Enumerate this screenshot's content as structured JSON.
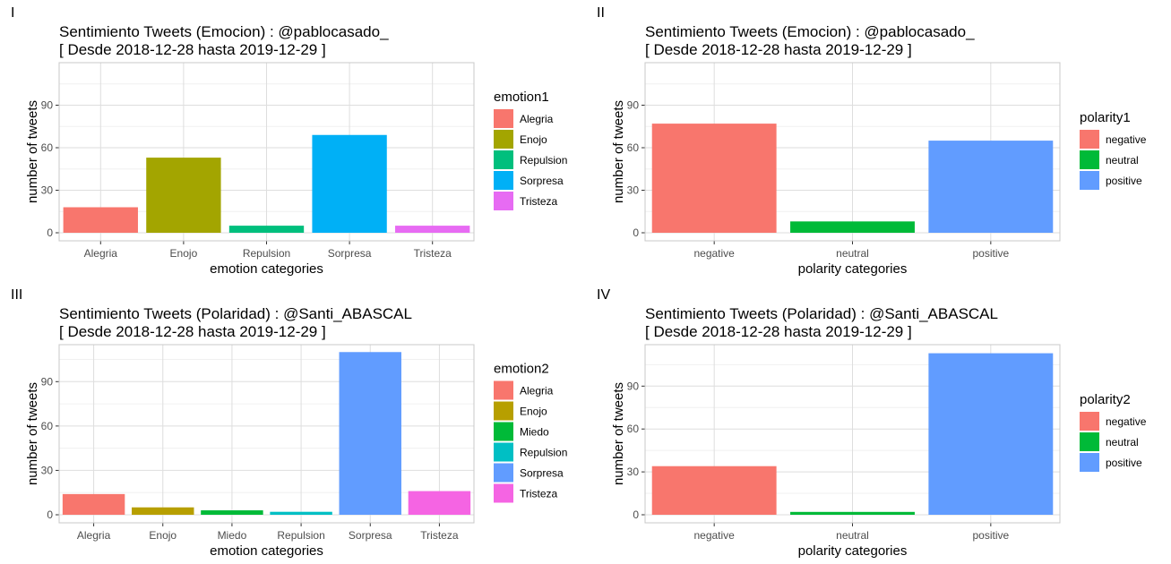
{
  "chart_data": [
    {
      "type": "bar",
      "panel_label": "I",
      "title_line1": "Sentimiento Tweets (Emocion) : @pablocasado_",
      "title_line2": "[ Desde 2018-12-28 hasta 2019-12-29 ]",
      "xlabel": "emotion categories",
      "ylabel": "number of tweets",
      "categories": [
        "Alegria",
        "Enojo",
        "Repulsion",
        "Sorpresa",
        "Tristeza"
      ],
      "values": [
        18,
        53,
        5,
        69,
        5
      ],
      "colors": [
        "#F8766D",
        "#A3A500",
        "#00BF7D",
        "#00B0F6",
        "#E76BF3"
      ],
      "yticks": [
        0,
        30,
        60,
        90
      ],
      "ylim": [
        0,
        120
      ],
      "legend_title": "emotion1",
      "legend_position": "right",
      "grid": true
    },
    {
      "type": "bar",
      "panel_label": "II",
      "title_line1": "Sentimiento Tweets (Emocion) : @pablocasado_",
      "title_line2": "[ Desde 2018-12-28 hasta 2019-12-29 ]",
      "xlabel": "polarity categories",
      "ylabel": "number of tweets",
      "categories": [
        "negative",
        "neutral",
        "positive"
      ],
      "values": [
        77,
        8,
        65
      ],
      "colors": [
        "#F8766D",
        "#00BA38",
        "#619CFF"
      ],
      "yticks": [
        0,
        30,
        60,
        90
      ],
      "ylim": [
        0,
        120
      ],
      "legend_title": "polarity1",
      "legend_position": "right",
      "grid": true
    },
    {
      "type": "bar",
      "panel_label": "III",
      "title_line1": "Sentimiento Tweets (Polaridad) : @Santi_ABASCAL",
      "title_line2": "[ Desde 2018-12-28 hasta 2019-12-29 ]",
      "xlabel": "emotion categories",
      "ylabel": "number of tweets",
      "categories": [
        "Alegria",
        "Enojo",
        "Miedo",
        "Repulsion",
        "Sorpresa",
        "Tristeza"
      ],
      "values": [
        14,
        5,
        3,
        2,
        110,
        16
      ],
      "colors": [
        "#F8766D",
        "#B79F00",
        "#00BA38",
        "#00BFC4",
        "#619CFF",
        "#F564E3"
      ],
      "yticks": [
        0,
        30,
        60,
        90
      ],
      "ylim": [
        0,
        115
      ],
      "legend_title": "emotion2",
      "legend_position": "right",
      "grid": true
    },
    {
      "type": "bar",
      "panel_label": "IV",
      "title_line1": "Sentimiento Tweets (Polaridad) : @Santi_ABASCAL",
      "title_line2": "[ Desde 2018-12-28 hasta 2019-12-29 ]",
      "xlabel": "polarity categories",
      "ylabel": "number of tweets",
      "categories": [
        "negative",
        "neutral",
        "positive"
      ],
      "values": [
        34,
        2,
        113
      ],
      "colors": [
        "#F8766D",
        "#00BA38",
        "#619CFF"
      ],
      "yticks": [
        0,
        30,
        60,
        90
      ],
      "ylim": [
        0,
        119
      ],
      "legend_title": "polarity2",
      "legend_position": "right",
      "grid": true
    }
  ]
}
